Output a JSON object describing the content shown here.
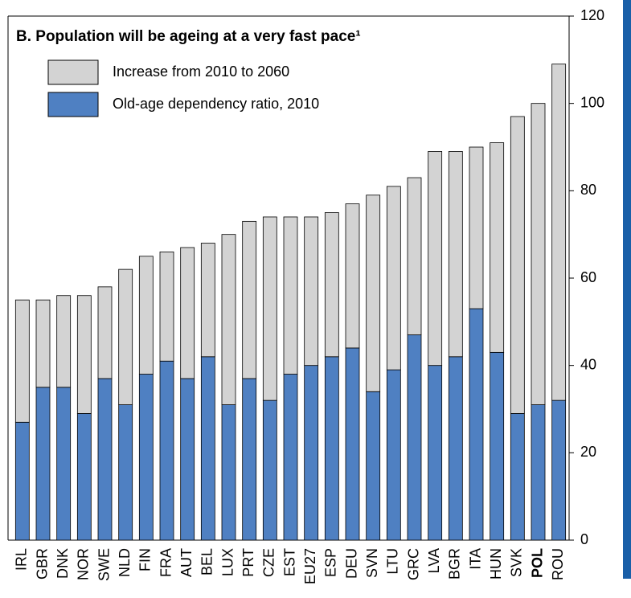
{
  "chart_data": {
    "type": "stacked_bar",
    "title": "B. Population will be ageing at a very fast pace¹",
    "categories": [
      "IRL",
      "GBR",
      "DNK",
      "NOR",
      "SWE",
      "NLD",
      "FIN",
      "FRA",
      "AUT",
      "BEL",
      "LUX",
      "PRT",
      "CZE",
      "EST",
      "EU27",
      "ESP",
      "DEU",
      "SVN",
      "LTU",
      "GRC",
      "LVA",
      "BGR",
      "ITA",
      "HUN",
      "SVK",
      "POL",
      "ROU"
    ],
    "series": [
      {
        "name": "Old-age dependency ratio, 2010",
        "color": "#4f80c2",
        "values": [
          27,
          35,
          35,
          29,
          37,
          31,
          38,
          41,
          37,
          42,
          31,
          37,
          32,
          38,
          40,
          42,
          44,
          34,
          39,
          47,
          40,
          42,
          53,
          43,
          29,
          31,
          32
        ]
      },
      {
        "name": "Increase from 2010 to 2060",
        "color": "#d3d3d3",
        "values": [
          28,
          20,
          21,
          27,
          21,
          31,
          27,
          25,
          30,
          26,
          39,
          36,
          42,
          36,
          34,
          33,
          33,
          45,
          42,
          36,
          49,
          47,
          37,
          48,
          68,
          69,
          77
        ]
      }
    ],
    "ylim": [
      0,
      120
    ],
    "yticks": [
      0,
      20,
      40,
      60,
      80,
      100,
      120
    ],
    "legend": "top-left",
    "grid": false
  }
}
